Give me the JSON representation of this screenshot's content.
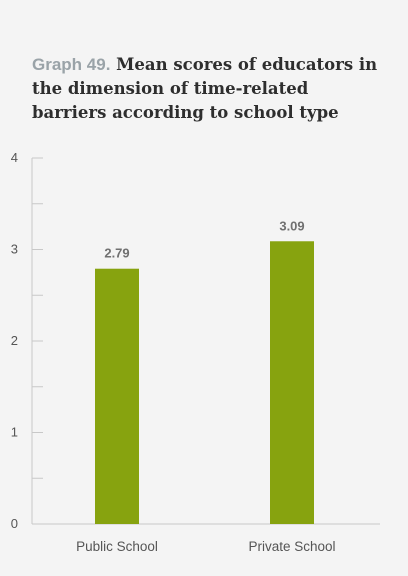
{
  "title": {
    "prefix": "Graph 49.",
    "text": "Mean scores of educators in the dimension of time-related barriers according to school type"
  },
  "colors": {
    "bar": "#87a30f",
    "axis": "#c8c8c8",
    "background": "#f4f4f4"
  },
  "chart_data": {
    "type": "bar",
    "title": "Graph 49. Mean scores of educators in the dimension of time-related barriers according to school type",
    "xlabel": "",
    "ylabel": "",
    "categories": [
      "Public School",
      "Private School"
    ],
    "values": [
      2.79,
      3.09
    ],
    "value_labels": [
      "2.79",
      "3.09"
    ],
    "ylim": [
      0,
      4
    ],
    "yticks": [
      0,
      1,
      2,
      3,
      4
    ],
    "grid": false,
    "legend": "none"
  }
}
